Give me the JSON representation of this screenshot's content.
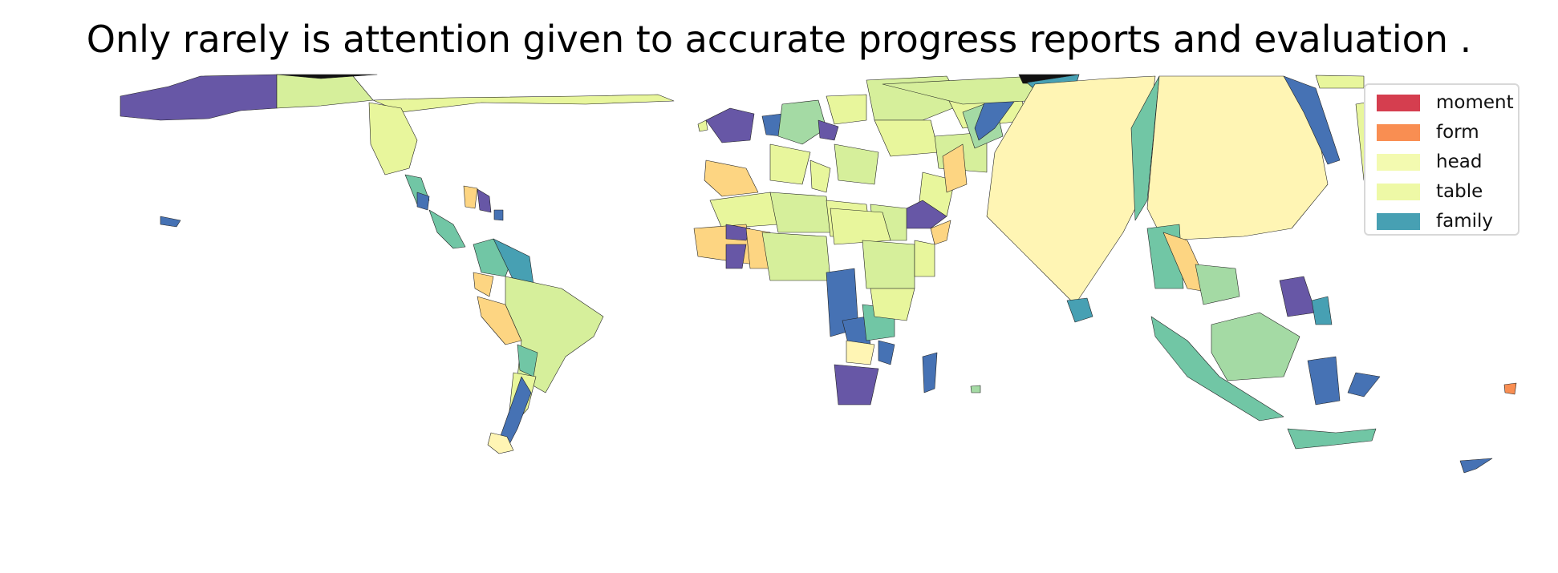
{
  "title": "Only rarely is attention given to accurate progress reports and evaluation .",
  "legend": {
    "items": [
      {
        "label": "moment",
        "color": "#d53e4f"
      },
      {
        "label": "form",
        "color": "#f98e52"
      },
      {
        "label": "head",
        "color": "#f3fab0"
      },
      {
        "label": "table",
        "color": "#eef9a6"
      },
      {
        "label": "family",
        "color": "#47a0b3"
      }
    ]
  },
  "palette": [
    "#6757a6",
    "#d6ef9b",
    "#fff5b4",
    "#a4daa4",
    "#71c6a5",
    "#4672b4",
    "#fdd582",
    "#47a0b3",
    "#e8f69c",
    "#f98e52"
  ]
}
